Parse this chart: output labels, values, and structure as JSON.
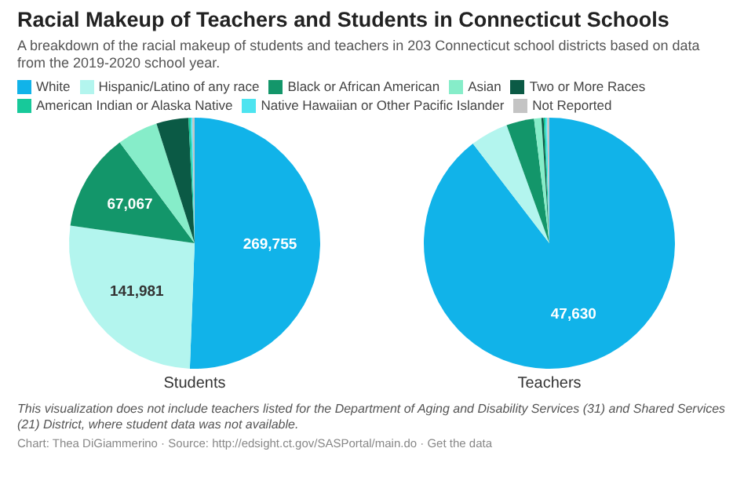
{
  "chart_data": {
    "type": "pie",
    "title": "Racial Makeup of Teachers and Students in Connecticut Schools",
    "subtitle": "A breakdown of the racial makeup of students and teachers in 203 Connecticut school districts based on data from the 2019-2020 school year.",
    "legend": "top",
    "categories": [
      "White",
      "Hispanic/Latino of any race",
      "Black or African American",
      "Asian",
      "Two or More Races",
      "American Indian or Alaska Native",
      "Native Hawaiian or Other Pacific Islander",
      "Not Reported"
    ],
    "colors": [
      "#11b3e9",
      "#b3f5ee",
      "#13966a",
      "#86edc9",
      "#0b5a45",
      "#17c99a",
      "#4de4f0",
      "#c4c4c4"
    ],
    "series": [
      {
        "name": "Students",
        "values": [
          269755,
          141981,
          67067,
          28000,
          22000,
          1500,
          1200,
          1500
        ],
        "value_labels": [
          "269,755",
          "141,981",
          "67,067",
          null,
          null,
          null,
          null,
          null
        ]
      },
      {
        "name": "Teachers",
        "values": [
          47630,
          2600,
          1900,
          500,
          150,
          120,
          120,
          150
        ],
        "value_labels": [
          "47,630",
          null,
          null,
          null,
          null,
          null,
          null,
          null
        ]
      }
    ],
    "annotations": [
      "This visualization does not include teachers listed for the Department of Aging and Disability Services (31) and Shared Services (21) District, where student data was not available.",
      "Chart: Thea DiGiammerino · Source: http://edsight.ct.gov/SASPortal/main.do · Get the data"
    ]
  }
}
